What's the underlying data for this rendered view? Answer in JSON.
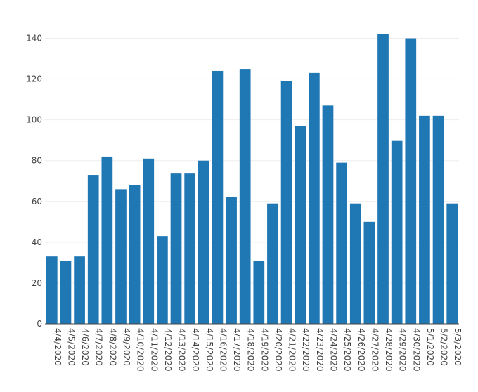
{
  "chart_data": {
    "type": "bar",
    "title": "",
    "xlabel": "",
    "ylabel": "",
    "categories": [
      "4/4/2020",
      "4/5/2020",
      "4/6/2020",
      "4/7/2020",
      "4/8/2020",
      "4/9/2020",
      "4/10/2020",
      "4/11/2020",
      "4/12/2020",
      "4/13/2020",
      "4/14/2020",
      "4/15/2020",
      "4/16/2020",
      "4/17/2020",
      "4/18/2020",
      "4/19/2020",
      "4/20/2020",
      "4/21/2020",
      "4/22/2020",
      "4/23/2020",
      "4/24/2020",
      "4/25/2020",
      "4/26/2020",
      "4/27/2020",
      "4/28/2020",
      "4/29/2020",
      "4/30/2020",
      "5/1/2020",
      "5/2/2020",
      "5/3/2020"
    ],
    "values": [
      33,
      31,
      33,
      73,
      82,
      66,
      68,
      81,
      43,
      74,
      74,
      80,
      124,
      62,
      125,
      31,
      59,
      119,
      97,
      123,
      107,
      79,
      59,
      50,
      142,
      90,
      140,
      102,
      102,
      59
    ],
    "ylim": [
      0,
      145
    ],
    "yticks": [
      0,
      20,
      40,
      60,
      80,
      100,
      120,
      140
    ],
    "grid": true,
    "legend": "none",
    "bar_color": "#1f77b4"
  }
}
